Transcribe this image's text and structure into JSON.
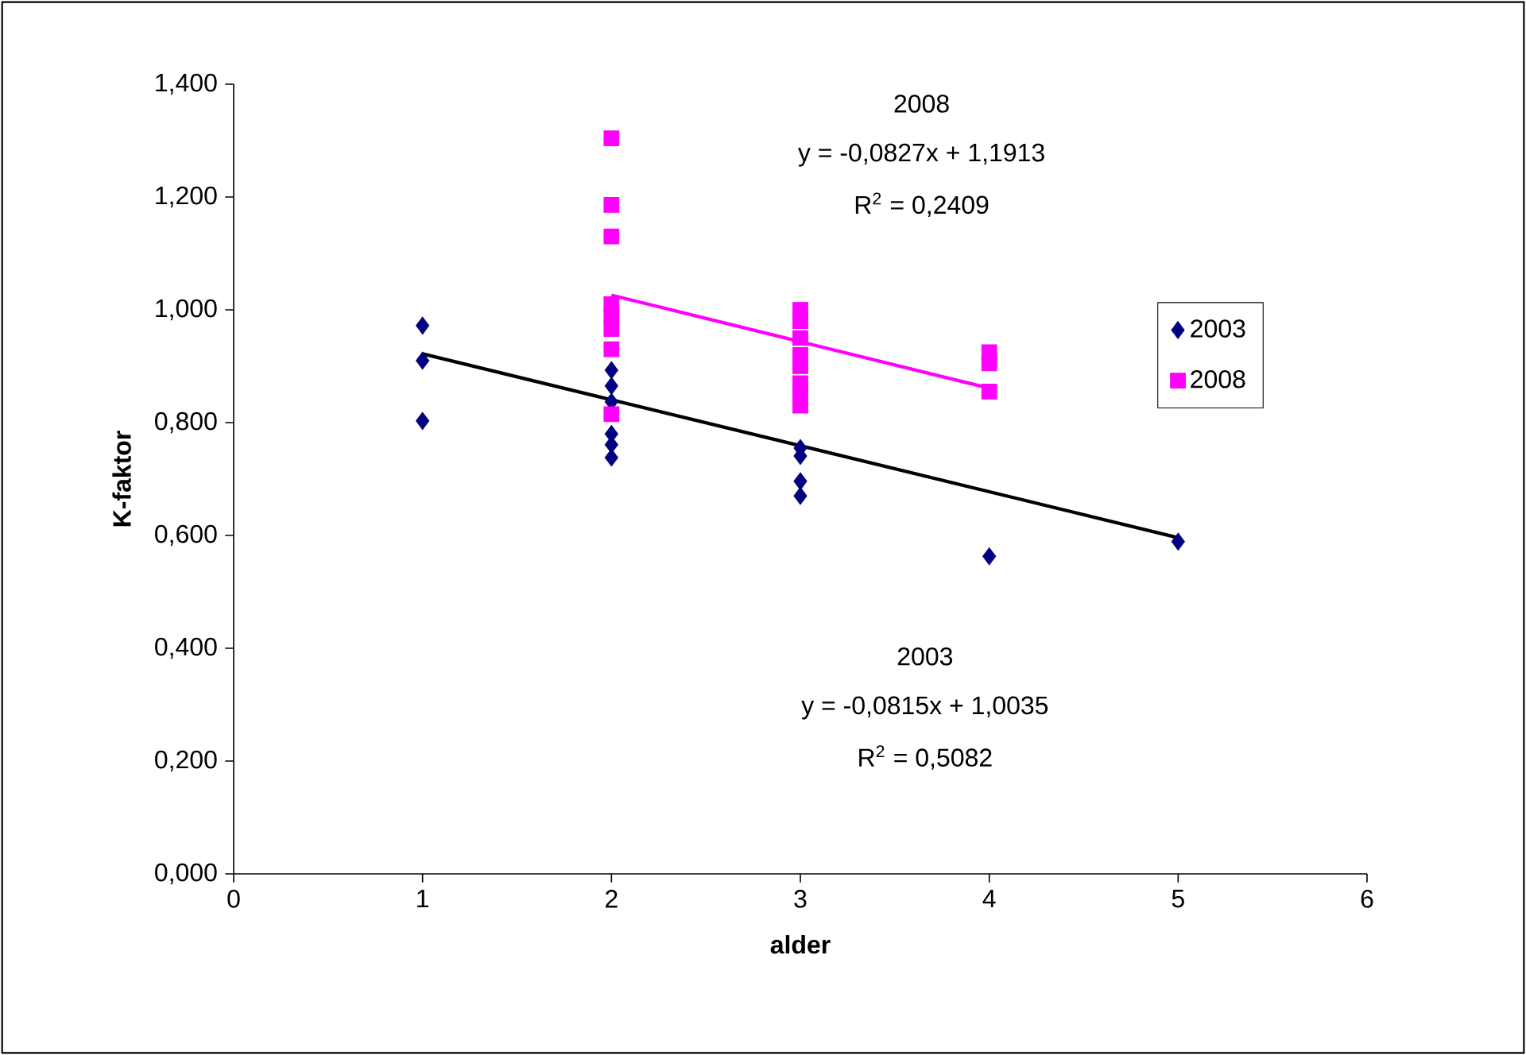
{
  "chart_data": {
    "type": "scatter",
    "xlabel": "alder",
    "ylabel": "K-faktor",
    "xlim": [
      0,
      6
    ],
    "xticks": [
      0,
      1,
      2,
      3,
      4,
      5,
      6
    ],
    "ylim": [
      0,
      1.4
    ],
    "yticks": [
      {
        "value": 0,
        "label": "0,000"
      },
      {
        "value": 0.2,
        "label": "0,200"
      },
      {
        "value": 0.4,
        "label": "0,400"
      },
      {
        "value": 0.6,
        "label": "0,600"
      },
      {
        "value": 0.8,
        "label": "0,800"
      },
      {
        "value": 1.0,
        "label": "1,000"
      },
      {
        "value": 1.2,
        "label": "1,200"
      },
      {
        "value": 1.4,
        "label": "1,400"
      }
    ],
    "grid": false,
    "legend": "right",
    "series": [
      {
        "name": "2003",
        "color": "#000080",
        "marker": "diamond",
        "x": [
          1,
          1,
          1,
          2,
          2,
          2,
          2,
          2,
          2,
          3,
          3,
          3,
          3,
          4,
          5
        ],
        "values": [
          0.972,
          0.91,
          0.803,
          0.893,
          0.865,
          0.837,
          0.78,
          0.761,
          0.738,
          0.755,
          0.741,
          0.696,
          0.67,
          0.563,
          0.589
        ]
      },
      {
        "name": "2008",
        "color": "#ff00ff",
        "marker": "square",
        "x": [
          2,
          2,
          2,
          2,
          2,
          2,
          2,
          2,
          3,
          3,
          3,
          3,
          3,
          3,
          3,
          3,
          4,
          4,
          4
        ],
        "values": [
          1.304,
          1.186,
          1.13,
          1.01,
          0.99,
          0.966,
          0.93,
          0.815,
          1.0,
          0.98,
          0.95,
          0.92,
          0.9,
          0.87,
          0.85,
          0.83,
          0.925,
          0.905,
          0.855
        ]
      },
      {
        "type": "line",
        "color": "#000000",
        "marker": "none",
        "x": [
          1,
          5
        ],
        "values": [
          0.922,
          0.596
        ]
      },
      {
        "type": "line",
        "color": "#ff00ff",
        "marker": "none",
        "x": [
          2,
          4
        ],
        "values": [
          1.026,
          0.861
        ]
      }
    ],
    "annotations": [
      "2008",
      "y = -0,0827x + 1,1913",
      "R$^{2}$ = 0,2409",
      "2003",
      "y = -0,0815x + 1,0035",
      "R$^{2}$ = 0,5082"
    ]
  }
}
